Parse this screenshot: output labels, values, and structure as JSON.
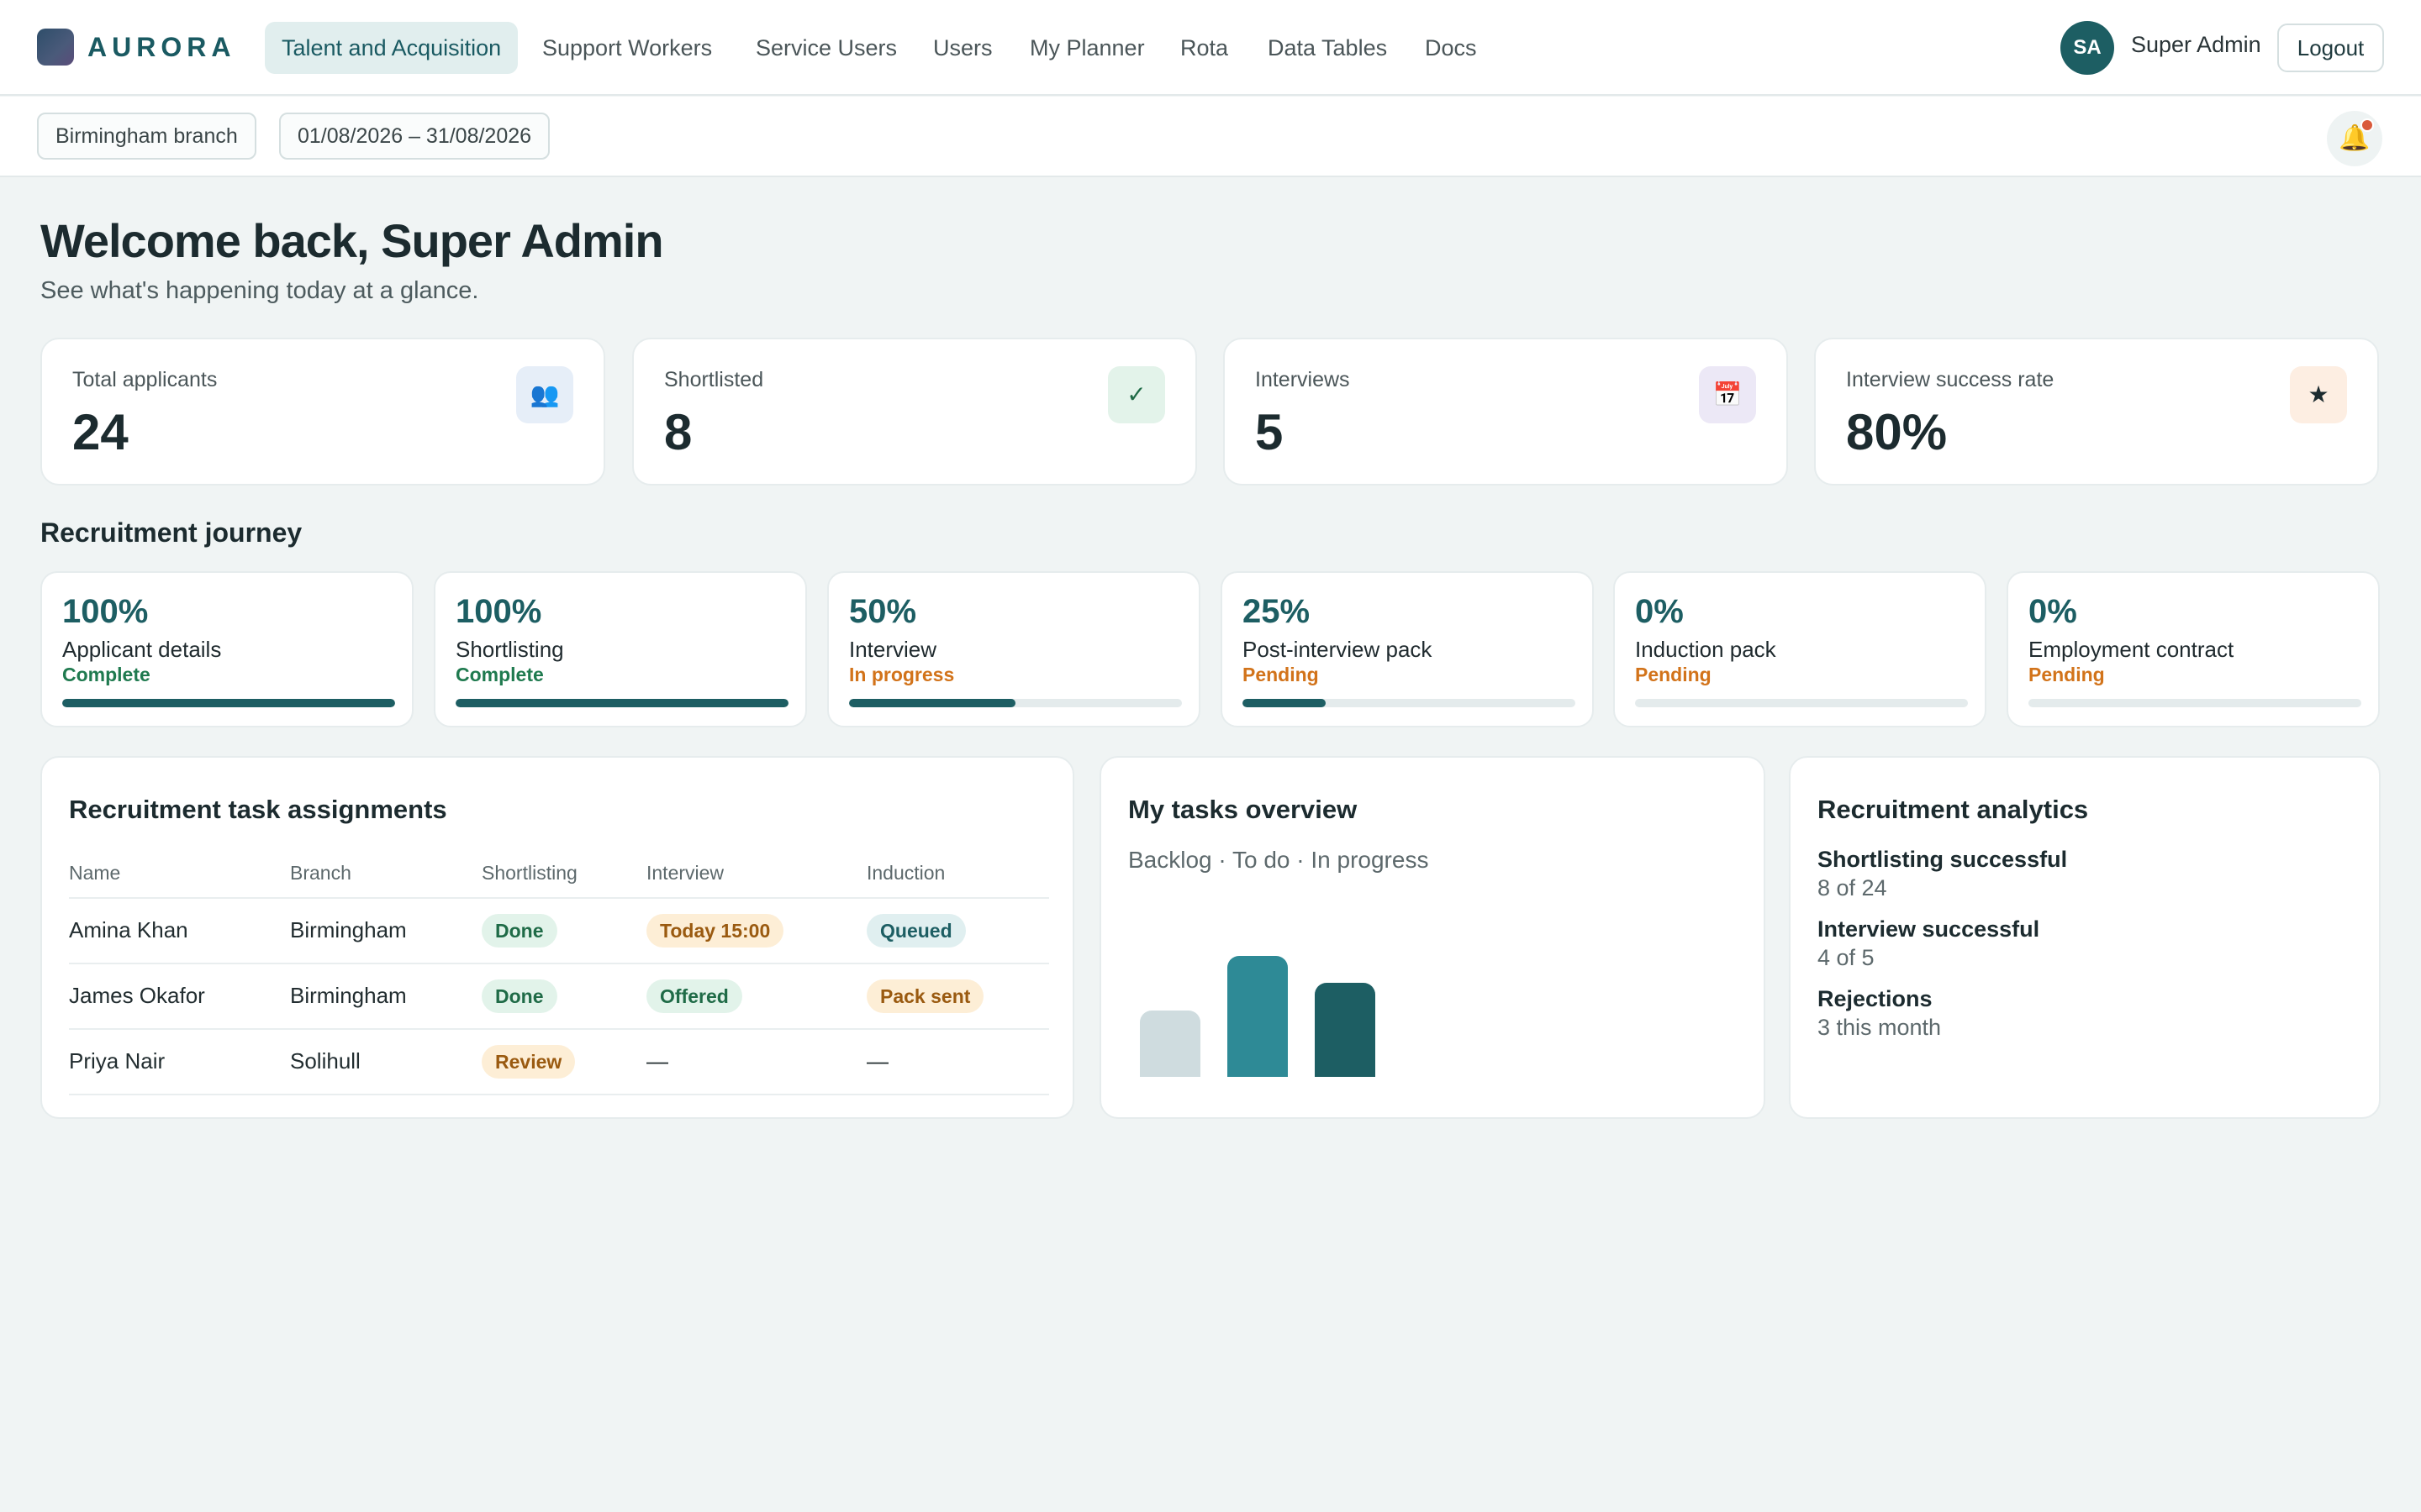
{
  "app": {
    "brand": "AURORA"
  },
  "nav": {
    "items": [
      {
        "label": "Talent and Acquisition",
        "active": true
      },
      {
        "label": "Support Workers",
        "active": false
      },
      {
        "label": "Service Users",
        "active": false
      },
      {
        "label": "Users",
        "active": false
      },
      {
        "label": "My Planner",
        "active": false
      },
      {
        "label": "Rota",
        "active": false
      },
      {
        "label": "Data Tables",
        "active": false
      },
      {
        "label": "Docs",
        "active": false
      }
    ]
  },
  "user": {
    "initials": "SA",
    "name": "Super Admin",
    "logout_label": "Logout"
  },
  "filters": {
    "branch": "Birmingham branch",
    "date_range": "01/08/2026 – 31/08/2026",
    "bell_icon": "bell-icon"
  },
  "welcome": {
    "title": "Welcome back, Super Admin",
    "subtitle": "See what's happening today at a glance."
  },
  "stats": [
    {
      "label": "Total applicants",
      "value": "24",
      "icon": "users-icon",
      "glyph": "👥",
      "tint": "#e6eef8"
    },
    {
      "label": "Shortlisted",
      "value": "8",
      "icon": "check-icon",
      "glyph": "✓",
      "tint": "#e3f3ea"
    },
    {
      "label": "Interviews",
      "value": "5",
      "icon": "calendar-icon",
      "glyph": "📅",
      "tint": "#ece8f6"
    },
    {
      "label": "Interview success rate",
      "value": "80%",
      "icon": "star-icon",
      "glyph": "★",
      "tint": "#fdeee2"
    }
  ],
  "journey": {
    "title": "Recruitment journey",
    "steps": [
      {
        "pct_label": "100%",
        "progress": 1.0,
        "name": "Applicant details",
        "status": "Complete",
        "status_kind": "complete"
      },
      {
        "pct_label": "100%",
        "progress": 1.0,
        "name": "Shortlisting",
        "status": "Complete",
        "status_kind": "complete"
      },
      {
        "pct_label": "50%",
        "progress": 0.5,
        "name": "Interview",
        "status": "In progress",
        "status_kind": "progress"
      },
      {
        "pct_label": "25%",
        "progress": 0.25,
        "name": "Post-interview pack",
        "status": "Pending",
        "status_kind": "pending"
      },
      {
        "pct_label": "0%",
        "progress": 0.0,
        "name": "Induction pack",
        "status": "Pending",
        "status_kind": "pending"
      },
      {
        "pct_label": "0%",
        "progress": 0.0,
        "name": "Employment contract",
        "status": "Pending",
        "status_kind": "pending"
      }
    ]
  },
  "tasks_table": {
    "title": "Recruitment task assignments",
    "columns": [
      "Name",
      "Branch",
      "Shortlisting",
      "Interview",
      "Induction"
    ],
    "rows": [
      {
        "name": "Amina Khan",
        "branch": "Birmingham",
        "shortlisting": {
          "text": "Done",
          "kind": "green"
        },
        "interview": {
          "text": "Today 15:00",
          "kind": "amber"
        },
        "induction": {
          "text": "Queued",
          "kind": "teal"
        }
      },
      {
        "name": "James Okafor",
        "branch": "Birmingham",
        "shortlisting": {
          "text": "Done",
          "kind": "green"
        },
        "interview": {
          "text": "Offered",
          "kind": "green"
        },
        "induction": {
          "text": "Pack sent",
          "kind": "amber"
        }
      },
      {
        "name": "Priya Nair",
        "branch": "Solihull",
        "shortlisting": {
          "text": "Review",
          "kind": "amber"
        },
        "interview": {
          "text": "—",
          "kind": "plain"
        },
        "induction": {
          "text": "—",
          "kind": "plain"
        }
      }
    ]
  },
  "tasks_overview": {
    "title": "My tasks overview",
    "subtitle": "Backlog · To do · In progress",
    "chart_data": {
      "type": "bar",
      "categories": [
        "Backlog",
        "To do",
        "In progress"
      ],
      "values": [
        0.55,
        1.0,
        0.78
      ],
      "colors": [
        "#cfdcdf",
        "#2e8a96",
        "#1d5e63"
      ],
      "ylim": [
        0,
        1
      ]
    }
  },
  "analytics": {
    "title": "Recruitment analytics",
    "items": [
      {
        "label": "Shortlisting successful",
        "value": "8 of 24"
      },
      {
        "label": "Interview successful",
        "value": "4 of 5"
      },
      {
        "label": "Rejections",
        "value": "3 this month"
      }
    ]
  }
}
